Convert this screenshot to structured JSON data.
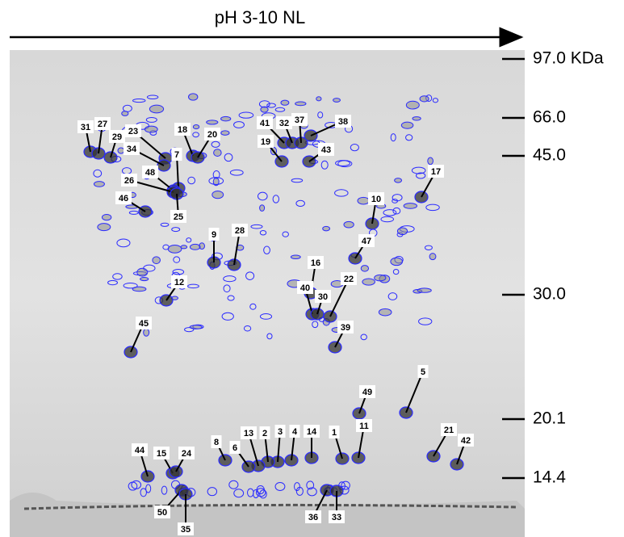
{
  "header": {
    "title": "pH 3-10 NL"
  },
  "mw_markers": [
    "97.0 KDa",
    "66.0",
    "45.0",
    "30.0",
    "20.1",
    "14.4"
  ],
  "spots": [
    "31",
    "27",
    "29",
    "23",
    "34",
    "18",
    "20",
    "7",
    "48",
    "26",
    "46",
    "25",
    "9",
    "28",
    "12",
    "45",
    "41",
    "32",
    "37",
    "38",
    "19",
    "43",
    "17",
    "10",
    "47",
    "16",
    "22",
    "40",
    "30",
    "39",
    "5",
    "49",
    "11",
    "1",
    "14",
    "4",
    "3",
    "2",
    "13",
    "6",
    "8",
    "21",
    "42",
    "44",
    "15",
    "24",
    "50",
    "35",
    "36",
    "33"
  ]
}
